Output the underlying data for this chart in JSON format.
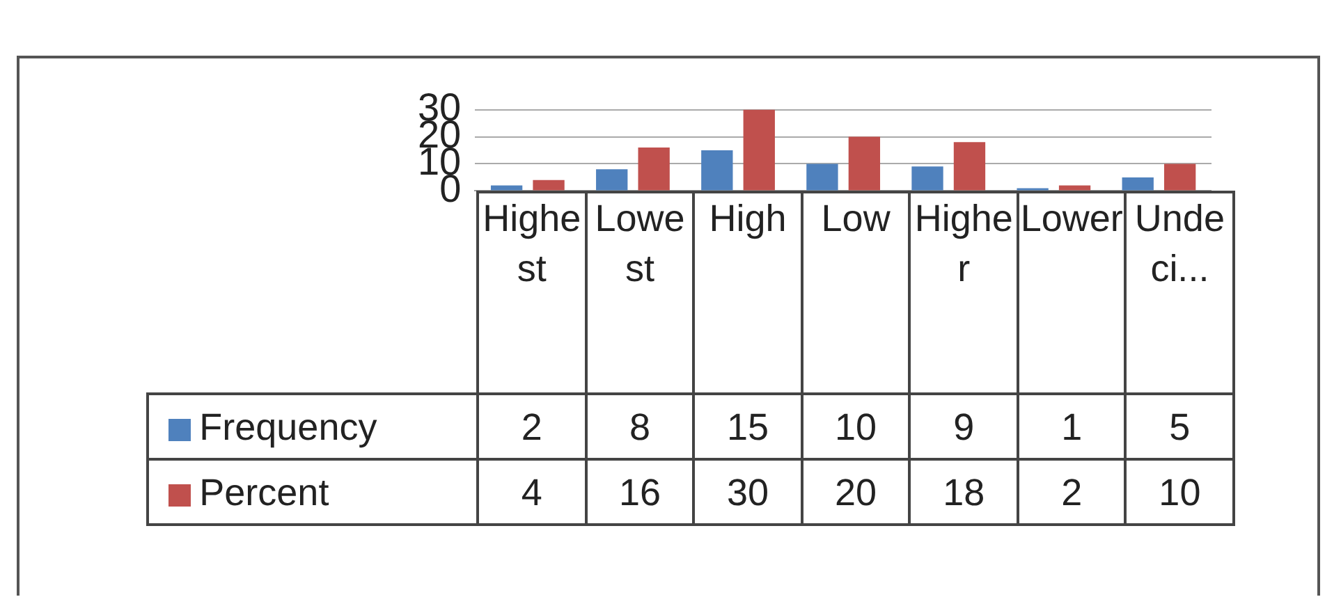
{
  "chart_data": {
    "type": "bar",
    "categories": [
      "Highest",
      "Lowest",
      "High",
      "Low",
      "Higher",
      "Lower",
      "Undeci..."
    ],
    "series": [
      {
        "name": "Frequency",
        "color": "#4f81bd",
        "values": [
          2,
          8,
          15,
          10,
          9,
          1,
          5
        ]
      },
      {
        "name": "Percent",
        "color": "#c0504d",
        "values": [
          4,
          16,
          30,
          20,
          18,
          2,
          10
        ]
      }
    ],
    "ylim": [
      0,
      30
    ],
    "yticks": [
      0,
      10,
      20,
      30
    ],
    "grid": "y",
    "legend": "bottom left",
    "data_labels": true
  }
}
